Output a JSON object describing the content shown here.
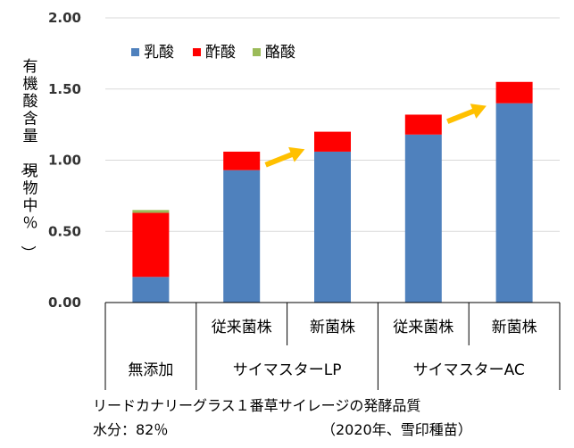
{
  "chart_data": {
    "type": "bar",
    "stacked": true,
    "ylabel": "有機酸含量（現物中％）",
    "ylim": [
      0,
      2.0
    ],
    "yticks": [
      "0.00",
      "0.50",
      "1.00",
      "1.50",
      "2.00"
    ],
    "grid": true,
    "legend_position": "top-left",
    "categories": [
      "無添加",
      "従来菌株",
      "新菌株",
      "従来菌株",
      "新菌株"
    ],
    "groups": [
      {
        "label": "無添加",
        "span": [
          0,
          0
        ]
      },
      {
        "label": "サイマスターLP",
        "span": [
          1,
          2
        ]
      },
      {
        "label": "サイマスターAC",
        "span": [
          3,
          4
        ]
      }
    ],
    "series": [
      {
        "name": "乳酸",
        "color": "#4f81bd",
        "values": [
          0.18,
          0.93,
          1.06,
          1.18,
          1.4
        ]
      },
      {
        "name": "酢酸",
        "color": "#ff0000",
        "values": [
          0.45,
          0.13,
          0.14,
          0.14,
          0.15
        ]
      },
      {
        "name": "酪酸",
        "color": "#9bbb59",
        "values": [
          0.02,
          0.0,
          0.0,
          0.0,
          0.0
        ]
      }
    ],
    "arrows": [
      {
        "from": 1,
        "to": 2,
        "color": "#ffc000"
      },
      {
        "from": 3,
        "to": 4,
        "color": "#ffc000"
      }
    ]
  },
  "footer": {
    "line1": "リードカナリーグラス１番草サイレージの発酵品質",
    "line2_left": "水分：82％",
    "line2_right": "（2020年、雪印種苗）"
  }
}
